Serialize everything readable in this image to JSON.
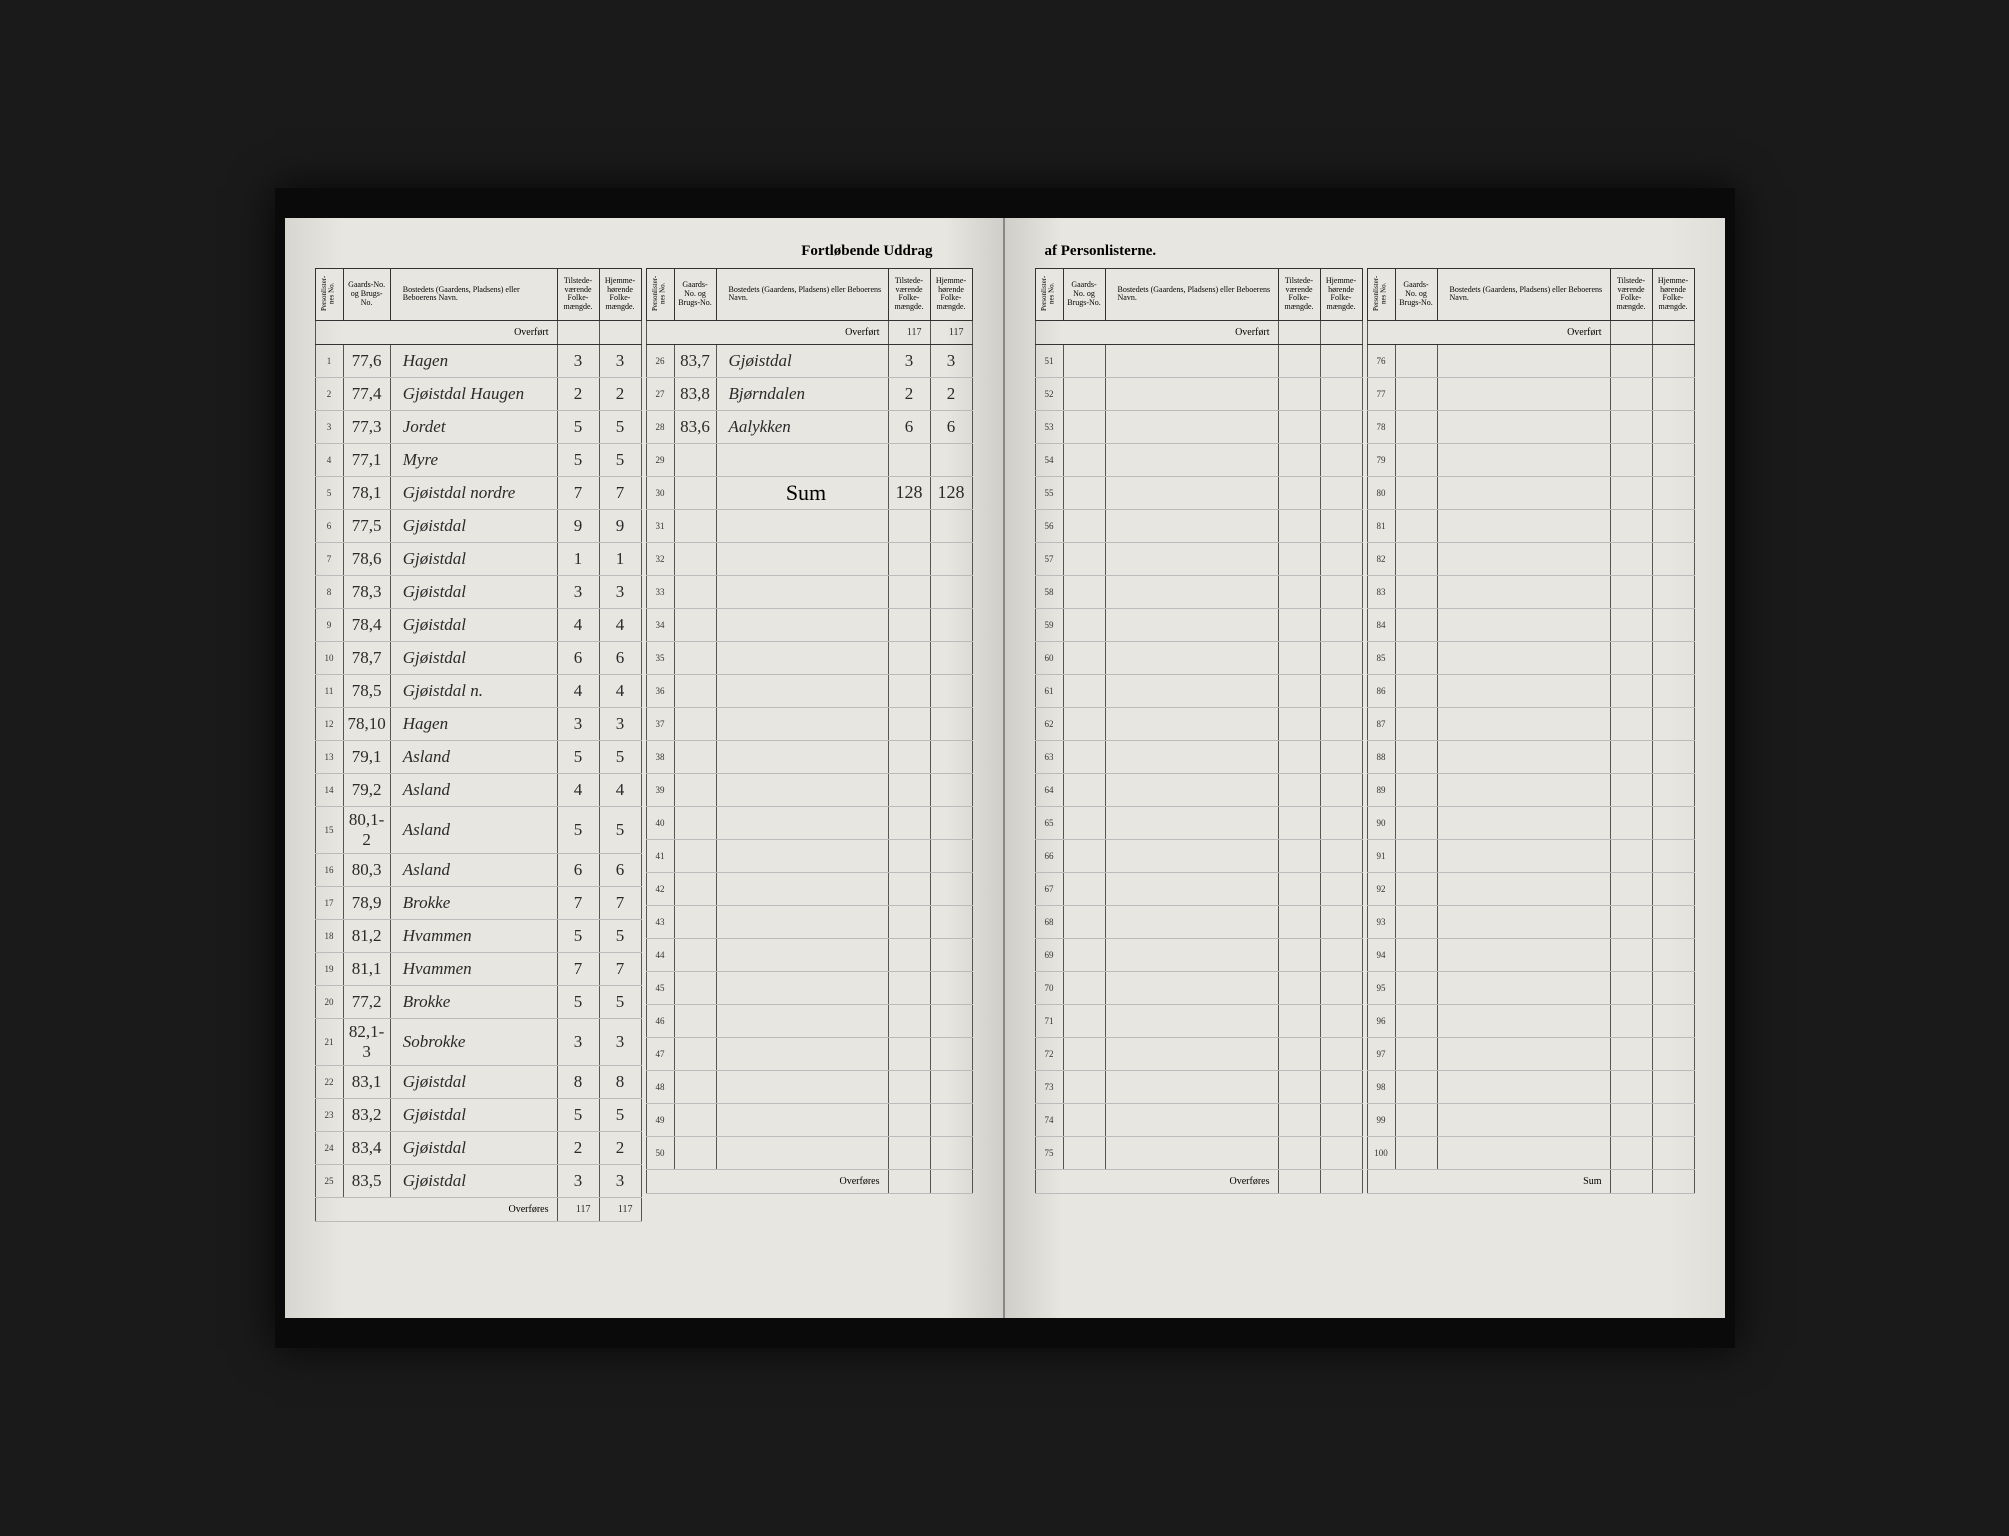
{
  "title_left": "Fortløbende Uddrag",
  "title_right": "af Personlisterne.",
  "headers": {
    "person": "Personlister-nes No.",
    "gnr": "Gaards-No. og Brugs-No.",
    "name": "Bostedets (Gaardens, Pladsens) eller Beboerens Navn.",
    "tilst": "Tilstede-værende Folke-mængde.",
    "hjem": "Hjemme-hørende Folke-mængde."
  },
  "overfort": "Overført",
  "overfores": "Overføres",
  "sum_label": "Sum",
  "sum_word": "Sum",
  "left_a": {
    "overfort_t": "",
    "overfort_h": "",
    "rows": [
      {
        "n": "1",
        "g": "77,6",
        "name": "Hagen",
        "t": "3",
        "h": "3"
      },
      {
        "n": "2",
        "g": "77,4",
        "name": "Gjøistdal Haugen",
        "t": "2",
        "h": "2"
      },
      {
        "n": "3",
        "g": "77,3",
        "name": "Jordet",
        "t": "5",
        "h": "5"
      },
      {
        "n": "4",
        "g": "77,1",
        "name": "Myre",
        "t": "5",
        "h": "5"
      },
      {
        "n": "5",
        "g": "78,1",
        "name": "Gjøistdal nordre",
        "t": "7",
        "h": "7"
      },
      {
        "n": "6",
        "g": "77,5",
        "name": "Gjøistdal",
        "t": "9",
        "h": "9"
      },
      {
        "n": "7",
        "g": "78,6",
        "name": "Gjøistdal",
        "t": "1",
        "h": "1"
      },
      {
        "n": "8",
        "g": "78,3",
        "name": "Gjøistdal",
        "t": "3",
        "h": "3"
      },
      {
        "n": "9",
        "g": "78,4",
        "name": "Gjøistdal",
        "t": "4",
        "h": "4"
      },
      {
        "n": "10",
        "g": "78,7",
        "name": "Gjøistdal",
        "t": "6",
        "h": "6"
      },
      {
        "n": "11",
        "g": "78,5",
        "name": "Gjøistdal n.",
        "t": "4",
        "h": "4"
      },
      {
        "n": "12",
        "g": "78,10",
        "name": "Hagen",
        "t": "3",
        "h": "3"
      },
      {
        "n": "13",
        "g": "79,1",
        "name": "Asland",
        "t": "5",
        "h": "5"
      },
      {
        "n": "14",
        "g": "79,2",
        "name": "Asland",
        "t": "4",
        "h": "4"
      },
      {
        "n": "15",
        "g": "80,1-2",
        "name": "Asland",
        "t": "5",
        "h": "5"
      },
      {
        "n": "16",
        "g": "80,3",
        "name": "Asland",
        "t": "6",
        "h": "6"
      },
      {
        "n": "17",
        "g": "78,9",
        "name": "Brokke",
        "t": "7",
        "h": "7"
      },
      {
        "n": "18",
        "g": "81,2",
        "name": "Hvammen",
        "t": "5",
        "h": "5"
      },
      {
        "n": "19",
        "g": "81,1",
        "name": "Hvammen",
        "t": "7",
        "h": "7"
      },
      {
        "n": "20",
        "g": "77,2",
        "name": "Brokke",
        "t": "5",
        "h": "5"
      },
      {
        "n": "21",
        "g": "82,1-3",
        "name": "Sobrokke",
        "t": "3",
        "h": "3"
      },
      {
        "n": "22",
        "g": "83,1",
        "name": "Gjøistdal",
        "t": "8",
        "h": "8"
      },
      {
        "n": "23",
        "g": "83,2",
        "name": "Gjøistdal",
        "t": "5",
        "h": "5"
      },
      {
        "n": "24",
        "g": "83,4",
        "name": "Gjøistdal",
        "t": "2",
        "h": "2"
      },
      {
        "n": "25",
        "g": "83,5",
        "name": "Gjøistdal",
        "t": "3",
        "h": "3"
      }
    ],
    "overfores_t": "117",
    "overfores_h": "117"
  },
  "left_b": {
    "overfort_t": "117",
    "overfort_h": "117",
    "rows": [
      {
        "n": "26",
        "g": "83,7",
        "name": "Gjøistdal",
        "t": "3",
        "h": "3"
      },
      {
        "n": "27",
        "g": "83,8",
        "name": "Bjørndalen",
        "t": "2",
        "h": "2"
      },
      {
        "n": "28",
        "g": "83,6",
        "name": "Aalykken",
        "t": "6",
        "h": "6"
      },
      {
        "n": "29",
        "g": "",
        "name": "",
        "t": "",
        "h": ""
      },
      {
        "n": "30",
        "g": "",
        "name": "",
        "t": "",
        "h": "",
        "sum": true,
        "sum_t": "128",
        "sum_h": "128"
      },
      {
        "n": "31"
      },
      {
        "n": "32"
      },
      {
        "n": "33"
      },
      {
        "n": "34"
      },
      {
        "n": "35"
      },
      {
        "n": "36"
      },
      {
        "n": "37"
      },
      {
        "n": "38"
      },
      {
        "n": "39"
      },
      {
        "n": "40"
      },
      {
        "n": "41"
      },
      {
        "n": "42"
      },
      {
        "n": "43"
      },
      {
        "n": "44"
      },
      {
        "n": "45"
      },
      {
        "n": "46"
      },
      {
        "n": "47"
      },
      {
        "n": "48"
      },
      {
        "n": "49"
      },
      {
        "n": "50"
      }
    ]
  },
  "right_a": {
    "rows": [
      {
        "n": "51"
      },
      {
        "n": "52"
      },
      {
        "n": "53"
      },
      {
        "n": "54"
      },
      {
        "n": "55"
      },
      {
        "n": "56"
      },
      {
        "n": "57"
      },
      {
        "n": "58"
      },
      {
        "n": "59"
      },
      {
        "n": "60"
      },
      {
        "n": "61"
      },
      {
        "n": "62"
      },
      {
        "n": "63"
      },
      {
        "n": "64"
      },
      {
        "n": "65"
      },
      {
        "n": "66"
      },
      {
        "n": "67"
      },
      {
        "n": "68"
      },
      {
        "n": "69"
      },
      {
        "n": "70"
      },
      {
        "n": "71"
      },
      {
        "n": "72"
      },
      {
        "n": "73"
      },
      {
        "n": "74"
      },
      {
        "n": "75"
      }
    ]
  },
  "right_b": {
    "rows": [
      {
        "n": "76"
      },
      {
        "n": "77"
      },
      {
        "n": "78"
      },
      {
        "n": "79"
      },
      {
        "n": "80"
      },
      {
        "n": "81"
      },
      {
        "n": "82"
      },
      {
        "n": "83"
      },
      {
        "n": "84"
      },
      {
        "n": "85"
      },
      {
        "n": "86"
      },
      {
        "n": "87"
      },
      {
        "n": "88"
      },
      {
        "n": "89"
      },
      {
        "n": "90"
      },
      {
        "n": "91"
      },
      {
        "n": "92"
      },
      {
        "n": "93"
      },
      {
        "n": "94"
      },
      {
        "n": "95"
      },
      {
        "n": "96"
      },
      {
        "n": "97"
      },
      {
        "n": "98"
      },
      {
        "n": "99"
      },
      {
        "n": "100"
      }
    ]
  }
}
